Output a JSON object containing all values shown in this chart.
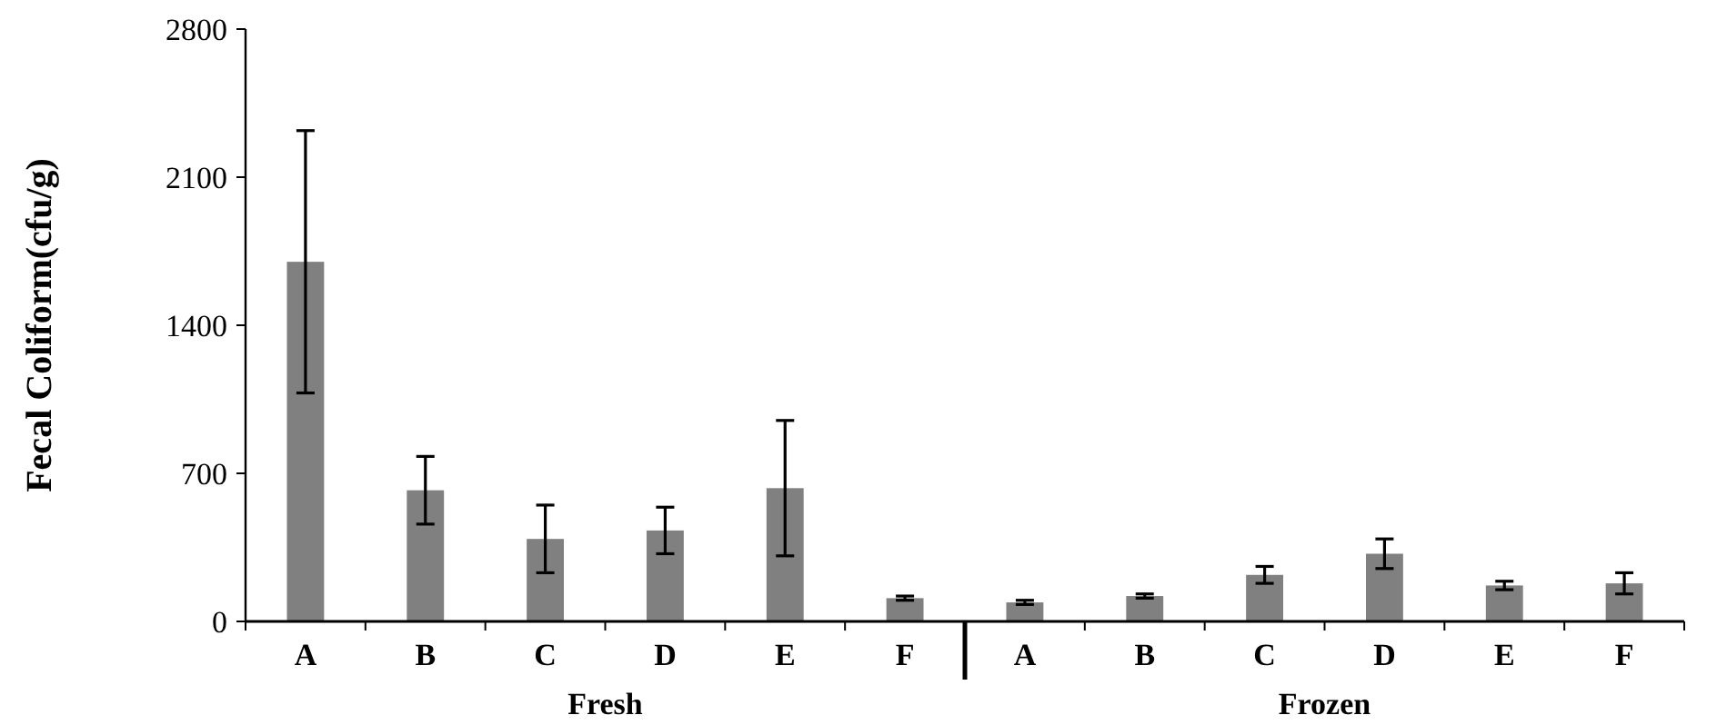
{
  "chart_data": {
    "type": "bar",
    "ylabel": "Fecal Coliform(cfu/g)",
    "categories": [
      "A",
      "B",
      "C",
      "D",
      "E",
      "F",
      "A",
      "B",
      "C",
      "D",
      "E",
      "F"
    ],
    "values": [
      1700,
      620,
      390,
      430,
      630,
      110,
      90,
      120,
      220,
      320,
      170,
      180
    ],
    "errors": [
      620,
      160,
      160,
      110,
      320,
      10,
      10,
      10,
      40,
      70,
      20,
      50
    ],
    "color": "#808080",
    "ylim": [
      0,
      2800
    ],
    "yticks": [
      0,
      700,
      1400,
      2100,
      2800
    ],
    "grid": false,
    "annotations": [
      "Fresh",
      "Frozen"
    ]
  }
}
